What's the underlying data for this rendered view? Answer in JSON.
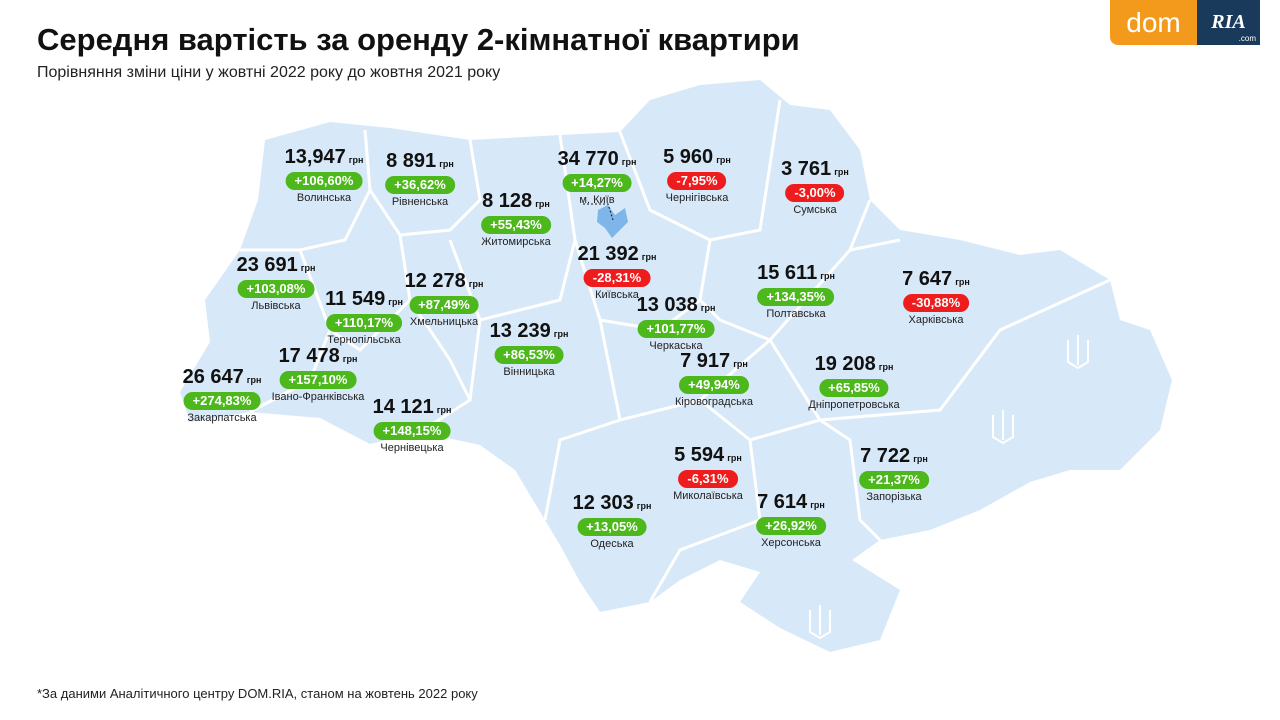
{
  "header": {
    "title": "Середня вартість за оренду 2-кімнатної квартири",
    "subtitle": "Порівняння зміни ціни у жовтні 2022 року до жовтня 2021 року"
  },
  "logo": {
    "dom": "dom",
    "ria": "RIA",
    "com": ".com"
  },
  "footnote": "*За даними Аналітичного центру DOM.RIA, станом на жовтень 2022 року",
  "colors": {
    "map_fill": "#d7e8f8",
    "increase": "#4cb81c",
    "decrease": "#ee1c1c",
    "kyiv_city": "#7fb6ea"
  },
  "unit": "грн",
  "regions": [
    {
      "name": "Волинська",
      "price": "13,947",
      "change": "+106,60%"
    },
    {
      "name": "Рівненська",
      "price": "8 891",
      "change": "+36,62%"
    },
    {
      "name": "Житомирська",
      "price": "8 128",
      "change": "+55,43%"
    },
    {
      "name": "м. Київ",
      "price": "34 770",
      "change": "+14,27%"
    },
    {
      "name": "Чернігівська",
      "price": "5 960",
      "change": "-7,95%"
    },
    {
      "name": "Сумська",
      "price": "3 761",
      "change": "-3,00%"
    },
    {
      "name": "Київська",
      "price": "21 392",
      "change": "-28,31%"
    },
    {
      "name": "Львівська",
      "price": "23 691",
      "change": "+103,08%"
    },
    {
      "name": "Тернопільська",
      "price": "11 549",
      "change": "+110,17%"
    },
    {
      "name": "Хмельницька",
      "price": "12 278",
      "change": "+87,49%"
    },
    {
      "name": "Вінницька",
      "price": "13 239",
      "change": "+86,53%"
    },
    {
      "name": "Черкаська",
      "price": "13 038",
      "change": "+101,77%"
    },
    {
      "name": "Полтавська",
      "price": "15 611",
      "change": "+134,35%"
    },
    {
      "name": "Харківська",
      "price": "7 647",
      "change": "-30,88%"
    },
    {
      "name": "Кіровоградська",
      "price": "7 917",
      "change": "+49,94%"
    },
    {
      "name": "Дніпропетровська",
      "price": "19 208",
      "change": "+65,85%"
    },
    {
      "name": "Івано-Франківська",
      "price": "17 478",
      "change": "+157,10%"
    },
    {
      "name": "Закарпатська",
      "price": "26 647",
      "change": "+274,83%"
    },
    {
      "name": "Чернівецька",
      "price": "14 121",
      "change": "+148,15%"
    },
    {
      "name": "Миколаївська",
      "price": "5 594",
      "change": "-6,31%"
    },
    {
      "name": "Одеська",
      "price": "12 303",
      "change": "+13,05%"
    },
    {
      "name": "Херсонська",
      "price": "7 614",
      "change": "+26,92%"
    },
    {
      "name": "Запорізька",
      "price": "7 722",
      "change": "+21,37%"
    }
  ]
}
